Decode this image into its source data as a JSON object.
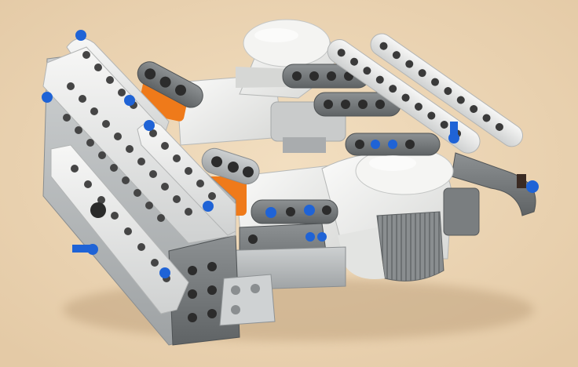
{
  "scene": {
    "subject": "lego-technic-motor-assembly",
    "colors": {
      "backdrop": "#ecd6b6",
      "beam_white": "#e9eaea",
      "beam_light_gray": "#b9bcbd",
      "beam_dark_gray": "#7c8082",
      "motor_white": "#f1f1ef",
      "pin_blue": "#1f63d6",
      "accent_orange": "#ef7a1a",
      "hole_dark": "#2c2c2c"
    },
    "parts": [
      "technic-beam",
      "servo-motor",
      "axle-pin",
      "frame-connector",
      "wheel-hub"
    ]
  }
}
